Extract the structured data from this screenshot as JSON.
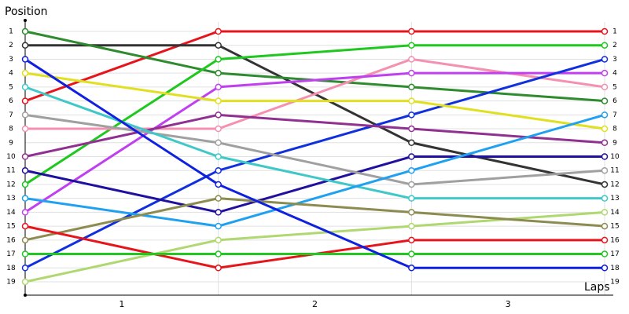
{
  "chart_data": {
    "type": "line",
    "ylabel": "Position",
    "xlabel": "Laps",
    "x": [
      0,
      1,
      2,
      3
    ],
    "xlim": [
      0,
      3
    ],
    "xticks": [
      {
        "value": 0.5,
        "label": "1"
      },
      {
        "value": 1.5,
        "label": "2"
      },
      {
        "value": 2.5,
        "label": "3"
      }
    ],
    "ylim": [
      1,
      19
    ],
    "y_inverted": true,
    "yticks": [
      1,
      2,
      3,
      4,
      5,
      6,
      7,
      8,
      9,
      10,
      11,
      12,
      13,
      14,
      15,
      16,
      17,
      18,
      19
    ],
    "grid": true,
    "series": [
      {
        "color": "#e8141c",
        "values": [
          6,
          1,
          1,
          1
        ]
      },
      {
        "color": "#333333",
        "values": [
          2,
          2,
          9,
          12
        ]
      },
      {
        "color": "#2e8b2e",
        "values": [
          1,
          4,
          5,
          6
        ]
      },
      {
        "color": "#1ec81e",
        "values": [
          12,
          3,
          2,
          2
        ]
      },
      {
        "color": "#f590b0",
        "values": [
          8,
          8,
          3,
          5
        ]
      },
      {
        "color": "#c040f0",
        "values": [
          14,
          5,
          4,
          4
        ]
      },
      {
        "color": "#1030e0",
        "values": [
          18,
          11,
          7,
          3
        ]
      },
      {
        "color": "#e0e020",
        "values": [
          4,
          6,
          6,
          8
        ]
      },
      {
        "color": "#903090",
        "values": [
          10,
          7,
          8,
          9
        ]
      },
      {
        "color": "#2010a0",
        "values": [
          11,
          14,
          10,
          10
        ]
      },
      {
        "color": "#a0a0a0",
        "values": [
          7,
          9,
          12,
          11
        ]
      },
      {
        "color": "#40c8c8",
        "values": [
          5,
          10,
          13,
          13
        ]
      },
      {
        "color": "#20a0f0",
        "values": [
          13,
          15,
          11,
          7
        ]
      },
      {
        "color": "#b0d870",
        "values": [
          19,
          16,
          15,
          14
        ]
      },
      {
        "color": "#8c8c50",
        "values": [
          16,
          13,
          14,
          15
        ]
      },
      {
        "color": "#e8141c",
        "values": [
          15,
          18,
          16,
          16
        ]
      },
      {
        "color": "#20c820",
        "values": [
          17,
          17,
          17,
          17
        ]
      },
      {
        "color": "#1020e0",
        "values": [
          3,
          12,
          18,
          18
        ]
      }
    ]
  }
}
